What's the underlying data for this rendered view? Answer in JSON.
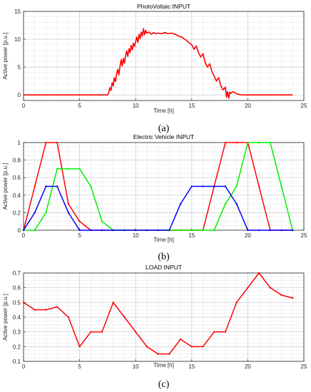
{
  "chart_data": [
    {
      "type": "line",
      "caption": "(a)",
      "title": "PhotoVoltaic INPUT",
      "xlabel": "Time [h]",
      "ylabel": "Active power [p.u.]",
      "xlim": [
        0,
        25
      ],
      "ylim": [
        -1,
        15
      ],
      "xticks": [
        0,
        5,
        10,
        15,
        20,
        25
      ],
      "yticks": [
        0,
        5,
        10,
        15
      ],
      "grid": true,
      "series": [
        {
          "color": "#ff0000",
          "x": [
            0,
            7.5,
            7.6,
            7.7,
            7.8,
            7.9,
            8.0,
            8.1,
            8.2,
            8.3,
            8.4,
            8.5,
            8.6,
            8.7,
            8.8,
            8.9,
            9.0,
            9.1,
            9.2,
            9.3,
            9.4,
            9.5,
            9.6,
            9.7,
            9.8,
            9.9,
            10.0,
            10.1,
            10.2,
            10.3,
            10.4,
            10.5,
            10.6,
            10.7,
            10.8,
            10.9,
            11.0,
            11.2,
            11.4,
            11.6,
            11.8,
            12.0,
            12.3,
            12.6,
            12.9,
            13.2,
            13.5,
            13.8,
            14.1,
            14.4,
            14.7,
            15.0,
            15.2,
            15.4,
            15.6,
            15.8,
            16.0,
            16.2,
            16.4,
            16.6,
            16.8,
            17.0,
            17.2,
            17.4,
            17.6,
            17.8,
            18.0,
            18.1,
            18.2,
            18.3,
            18.4,
            18.5,
            18.7,
            19.0,
            19.3,
            19.6,
            24
          ],
          "y": [
            0,
            0,
            0.4,
            1.3,
            0.8,
            2.2,
            1.6,
            3.1,
            2.4,
            3.8,
            4.6,
            3.6,
            5.1,
            6.3,
            5.2,
            6.6,
            5.7,
            7.0,
            7.9,
            6.9,
            8.3,
            7.6,
            8.9,
            8.1,
            9.3,
            8.7,
            9.6,
            10.4,
            9.4,
            10.9,
            10.1,
            11.3,
            10.6,
            11.9,
            10.8,
            11.6,
            11.1,
            11.3,
            10.9,
            11.2,
            11.0,
            11.1,
            11.0,
            11.2,
            11.0,
            11.1,
            10.9,
            10.6,
            10.4,
            10.0,
            9.5,
            9.0,
            8.2,
            8.8,
            7.6,
            6.8,
            7.4,
            5.8,
            5.0,
            5.6,
            4.2,
            3.4,
            2.5,
            3.1,
            1.6,
            0.9,
            1.4,
            -0.4,
            0.6,
            -0.6,
            0.5,
            0.3,
            0.6,
            0.2,
            0.05,
            0,
            0
          ]
        }
      ]
    },
    {
      "type": "line",
      "caption": "(b)",
      "title": "Electric Vehicle INPUT",
      "xlabel": "Time [h]",
      "ylabel": "Active power [p.u.]",
      "xlim": [
        0,
        25
      ],
      "ylim": [
        0,
        1
      ],
      "xticks": [
        0,
        5,
        10,
        15,
        20,
        25
      ],
      "yticks": [
        0,
        0.2,
        0.4,
        0.6,
        0.8,
        1
      ],
      "ytick_labels": [
        "0",
        "0.2",
        "0.4",
        "0.6",
        "0.8",
        "1"
      ],
      "grid": true,
      "series": [
        {
          "color": "#ff0000",
          "x": [
            0,
            1,
            2,
            3,
            4,
            5,
            6,
            7,
            8,
            9,
            10,
            11,
            12,
            13,
            14,
            15,
            16,
            17,
            18,
            19,
            20,
            21,
            22,
            23,
            24
          ],
          "y": [
            0,
            0.5,
            1,
            1,
            0.3,
            0.1,
            0,
            0,
            0,
            0,
            0,
            0,
            0,
            0,
            0,
            0,
            0,
            0.5,
            1,
            1,
            1,
            0.5,
            0,
            0,
            0
          ]
        },
        {
          "color": "#00ee00",
          "x": [
            0,
            1,
            2,
            3,
            4,
            5,
            6,
            7,
            8,
            9,
            10,
            11,
            12,
            13,
            14,
            15,
            16,
            17,
            18,
            19,
            20,
            21,
            22,
            23,
            24
          ],
          "y": [
            0,
            0,
            0.2,
            0.7,
            0.7,
            0.7,
            0.5,
            0.1,
            0,
            0,
            0,
            0,
            0,
            0,
            0,
            0,
            0,
            0,
            0.3,
            0.5,
            1,
            1,
            1,
            0.5,
            0
          ]
        },
        {
          "color": "#0000ff",
          "x": [
            0,
            1,
            2,
            3,
            4,
            5,
            6,
            7,
            8,
            9,
            10,
            11,
            12,
            13,
            14,
            15,
            16,
            17,
            18,
            19,
            20,
            21,
            22,
            23,
            24
          ],
          "y": [
            0,
            0.2,
            0.5,
            0.5,
            0.2,
            0,
            0,
            0,
            0,
            0,
            0,
            0,
            0,
            0,
            0.3,
            0.5,
            0.5,
            0.5,
            0.5,
            0.3,
            0,
            0,
            0,
            0,
            0
          ]
        }
      ]
    },
    {
      "type": "line",
      "caption": "(c)",
      "title": "LOAD INPUT",
      "xlabel": "Time [h]",
      "ylabel": "Active power [p.u.]",
      "xlim": [
        0,
        25
      ],
      "ylim": [
        0.1,
        0.7
      ],
      "xticks": [
        0,
        5,
        10,
        15,
        20,
        25
      ],
      "yticks": [
        0.1,
        0.2,
        0.3,
        0.4,
        0.5,
        0.6,
        0.7
      ],
      "grid": true,
      "series": [
        {
          "color": "#ff0000",
          "x": [
            0,
            1,
            2,
            3,
            4,
            5,
            6,
            7,
            8,
            9,
            10,
            11,
            12,
            13,
            14,
            15,
            16,
            17,
            18,
            19,
            20,
            21,
            22,
            23,
            24
          ],
          "y": [
            0.5,
            0.45,
            0.45,
            0.47,
            0.4,
            0.2,
            0.3,
            0.3,
            0.5,
            0.4,
            0.3,
            0.2,
            0.15,
            0.15,
            0.25,
            0.2,
            0.2,
            0.3,
            0.3,
            0.5,
            0.6,
            0.7,
            0.6,
            0.55,
            0.53
          ]
        }
      ]
    }
  ]
}
